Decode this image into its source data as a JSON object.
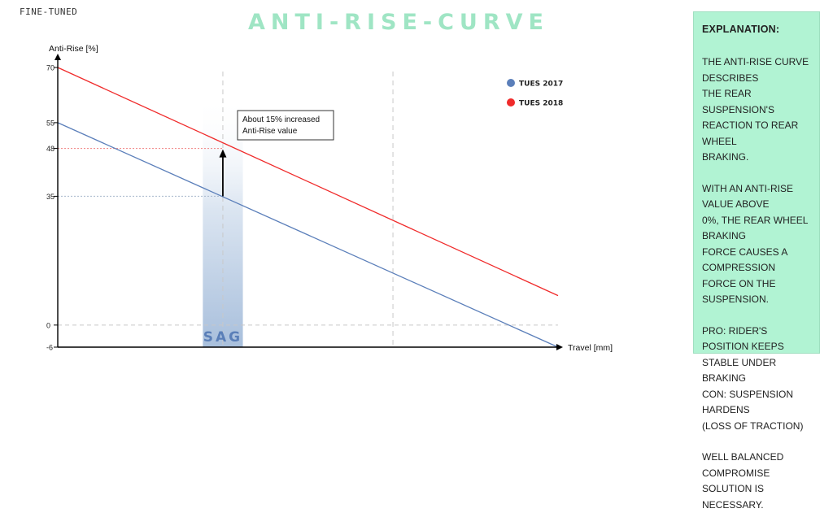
{
  "brand": "FINE-TUNED",
  "title": "ANTI-RISE-CURVE",
  "explanation": {
    "title": "EXPLANATION:",
    "paragraphs": [
      "THE ANTI-RISE CURVE DESCRIBES\nTHE REAR SUSPENSION'S\nREACTION TO REAR WHEEL\nBRAKING.",
      "WITH AN ANTI-RISE VALUE ABOVE\n0%, THE REAR WHEEL BRAKING\nFORCE CAUSES A COMPRESSION\nFORCE ON THE SUSPENSION.",
      "PRO: RIDER'S POSITION KEEPS\nSTABLE UNDER BRAKING\nCON: SUSPENSION HARDENS\n(LOSS OF TRACTION)",
      "WELL BALANCED COMPROMISE\nSOLUTION IS NECESSARY."
    ]
  },
  "chart_data": {
    "type": "line",
    "xlabel": "Travel [mm]",
    "ylabel": "Anti-Rise [%]",
    "ylim": [
      -6,
      70
    ],
    "yticks": [
      -6,
      0,
      35,
      48,
      55,
      70
    ],
    "xlim": [
      0,
      1
    ],
    "x_gridlines": [
      0.33,
      0.67
    ],
    "grid": true,
    "legend_position": "top-right",
    "series": [
      {
        "name": "TUES 2017",
        "color": "#5b7fba",
        "x": [
          0,
          1
        ],
        "y": [
          55,
          -6
        ]
      },
      {
        "name": "TUES 2018",
        "color": "#f02b2b",
        "x": [
          0,
          1
        ],
        "y": [
          70,
          8
        ]
      }
    ],
    "reference_lines": [
      {
        "y": 48
      },
      {
        "y": 35
      }
    ],
    "sag_band": {
      "label": "SAG",
      "x_from": 0.29,
      "x_to": 0.37
    },
    "annotation": {
      "text_line1": "About 15% increased",
      "text_line2": "Anti-Rise value",
      "x": 0.33,
      "y_from": 35,
      "y_to": 48
    }
  }
}
